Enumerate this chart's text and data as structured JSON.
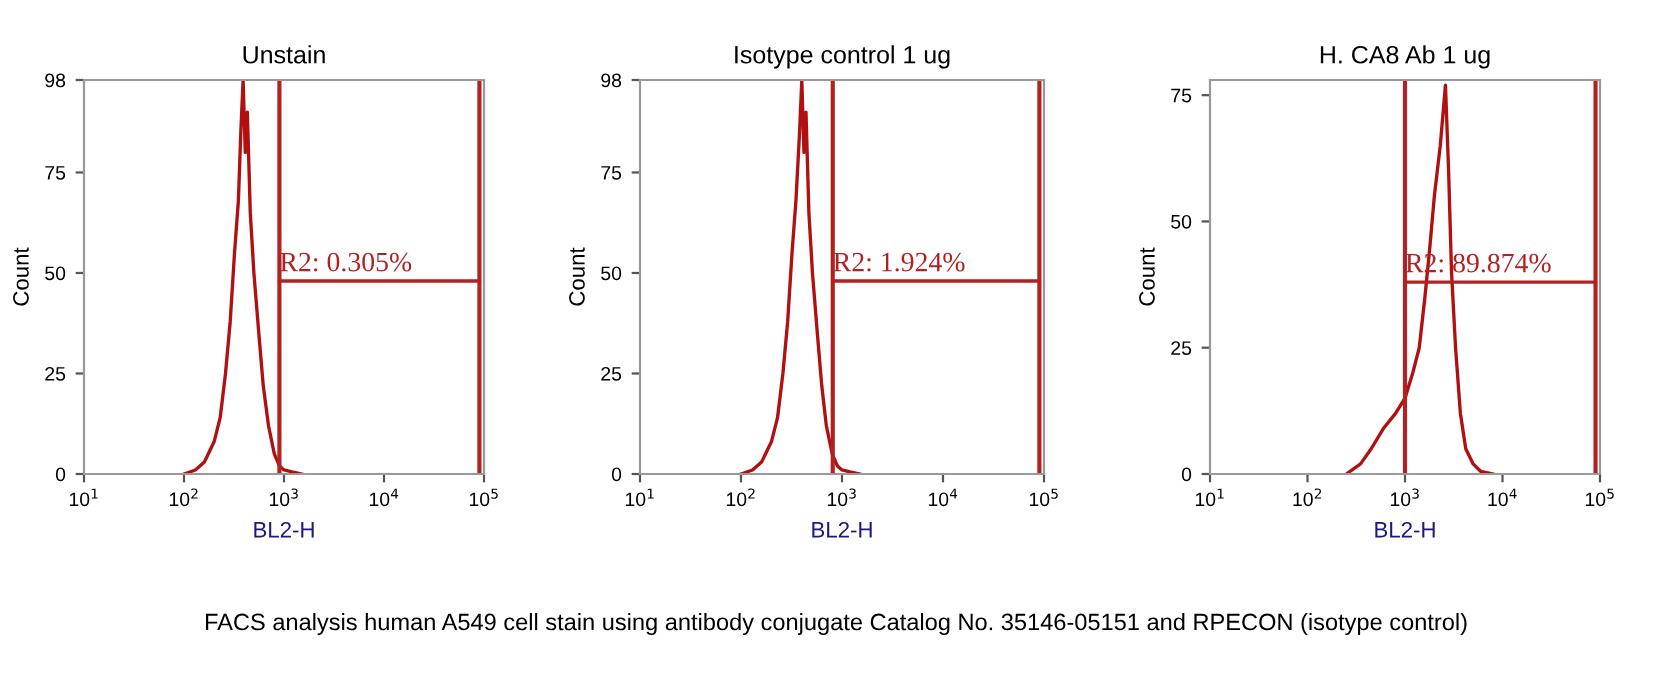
{
  "chart_data": [
    {
      "type": "line",
      "title": "Unstain",
      "xlabel": "BL2-H",
      "ylabel": "Count",
      "log": "x",
      "grid": false,
      "marker": "none",
      "line_style": "solid",
      "xlim": [
        10,
        100000
      ],
      "xticks": [
        {
          "value": 10,
          "label": "10$^{1}$"
        },
        {
          "value": 100,
          "label": "10$^{2}$"
        },
        {
          "value": 1000,
          "label": "10$^{3}$"
        },
        {
          "value": 10000,
          "label": "10$^{4}$"
        },
        {
          "value": 100000,
          "label": "10$^{5}$"
        }
      ],
      "ylim": [
        0,
        98
      ],
      "yticks": [
        0,
        25,
        50,
        75,
        98
      ],
      "series": [
        {
          "color": "#b01010",
          "x": [
            100,
            130,
            160,
            200,
            230,
            260,
            290,
            320,
            350,
            370,
            390,
            410,
            430,
            460,
            500,
            560,
            620,
            700,
            800,
            900,
            1000,
            1200,
            1500
          ],
          "values": [
            0,
            1,
            3,
            8,
            14,
            25,
            38,
            55,
            68,
            85,
            98,
            80,
            90,
            65,
            50,
            35,
            22,
            12,
            5,
            2,
            1,
            0.5,
            0
          ]
        },
        {
          "color": "#b22222",
          "x": [
            900,
            90000
          ],
          "values": [
            48,
            48
          ]
        }
      ],
      "ref_lines": [
        {
          "axis": "x",
          "value": 900,
          "color": "#b22222"
        },
        {
          "axis": "x",
          "value": 90000,
          "color": "#b22222"
        }
      ],
      "annotations": [
        {
          "text": "R2: 0.305%",
          "x": 900,
          "y": 48
        },
        "FACS analysis human A549 cell stain using antibody conjugate Catalog No. 35146-05151 and RPECON (isotype control)"
      ]
    },
    {
      "type": "line",
      "title": "Isotype control 1 ug",
      "xlabel": "BL2-H",
      "ylabel": "Count",
      "log": "x",
      "grid": false,
      "marker": "none",
      "line_style": "solid",
      "xlim": [
        10,
        100000
      ],
      "xticks": [
        {
          "value": 10,
          "label": "10$^{1}$"
        },
        {
          "value": 100,
          "label": "10$^{2}$"
        },
        {
          "value": 1000,
          "label": "10$^{3}$"
        },
        {
          "value": 10000,
          "label": "10$^{4}$"
        },
        {
          "value": 100000,
          "label": "10$^{5}$"
        }
      ],
      "ylim": [
        0,
        98
      ],
      "yticks": [
        0,
        25,
        50,
        75,
        98
      ],
      "series": [
        {
          "color": "#b01010",
          "x": [
            100,
            130,
            160,
            200,
            230,
            260,
            290,
            320,
            350,
            380,
            400,
            420,
            440,
            470,
            510,
            570,
            630,
            700,
            800,
            900,
            1000,
            1200,
            1500
          ],
          "values": [
            0,
            1,
            3,
            8,
            14,
            25,
            38,
            55,
            68,
            85,
            98,
            80,
            90,
            65,
            50,
            35,
            22,
            12,
            5,
            2,
            1,
            0.5,
            0
          ]
        },
        {
          "color": "#b22222",
          "x": [
            810,
            90000
          ],
          "values": [
            48,
            48
          ]
        }
      ],
      "ref_lines": [
        {
          "axis": "x",
          "value": 810,
          "color": "#b22222"
        },
        {
          "axis": "x",
          "value": 90000,
          "color": "#b22222"
        }
      ],
      "annotations": [
        {
          "text": "R2: 1.924%",
          "x": 810,
          "y": 48
        }
      ]
    },
    {
      "type": "line",
      "title": "H. CA8 Ab 1 ug",
      "xlabel": "BL2-H",
      "ylabel": "Count",
      "log": "x",
      "grid": false,
      "marker": "none",
      "line_style": "solid",
      "xlim": [
        10,
        100000
      ],
      "xticks": [
        {
          "value": 10,
          "label": "10$^{1}$"
        },
        {
          "value": 100,
          "label": "10$^{2}$"
        },
        {
          "value": 1000,
          "label": "10$^{3}$"
        },
        {
          "value": 10000,
          "label": "10$^{4}$"
        },
        {
          "value": 100000,
          "label": "10$^{5}$"
        }
      ],
      "ylim": [
        0,
        78
      ],
      "yticks": [
        0,
        25,
        50,
        75
      ],
      "series": [
        {
          "color": "#b01010",
          "x": [
            250,
            350,
            450,
            600,
            800,
            1000,
            1200,
            1400,
            1600,
            1800,
            2000,
            2300,
            2600,
            2800,
            3000,
            3300,
            3700,
            4200,
            5000,
            6000,
            8000
          ],
          "values": [
            0,
            2,
            5,
            9,
            12,
            15,
            20,
            25,
            35,
            45,
            55,
            65,
            77,
            60,
            40,
            25,
            12,
            5,
            2,
            0.5,
            0
          ]
        },
        {
          "color": "#b22222",
          "x": [
            1000,
            90000
          ],
          "values": [
            38,
            38
          ]
        }
      ],
      "ref_lines": [
        {
          "axis": "x",
          "value": 1000,
          "color": "#b22222"
        },
        {
          "axis": "x",
          "value": 90000,
          "color": "#b22222"
        }
      ],
      "annotations": [
        {
          "text": "R2: 89.874%",
          "x": 1000,
          "y": 38
        }
      ]
    }
  ]
}
